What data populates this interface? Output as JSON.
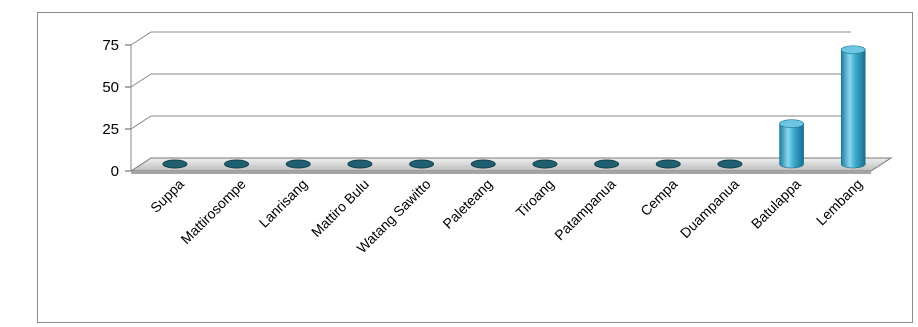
{
  "chart_data": {
    "type": "bar",
    "categories": [
      "Suppa",
      "Mattirosompe",
      "Lanrisang",
      "Mattiro Bulu",
      "Watang Sawitto",
      "Paleteang",
      "Tiroang",
      "Patampanua",
      "Cempa",
      "Duampanua",
      "Batulappa",
      "Lembang"
    ],
    "values": [
      0,
      0,
      0,
      0,
      0,
      0,
      0,
      0,
      0,
      0,
      24,
      68
    ],
    "ylim": [
      0,
      75
    ],
    "yticks": [
      0,
      25,
      50,
      75
    ],
    "grid": true,
    "style": "3d-cylinder",
    "colors": {
      "bar": "#3aa9cc",
      "bar_dark": "#1e7fa0",
      "bar_light": "#8ad6ee",
      "zero_cap": "#1f5f70",
      "floor": "#d9d9d9",
      "grid": "#888888"
    }
  }
}
